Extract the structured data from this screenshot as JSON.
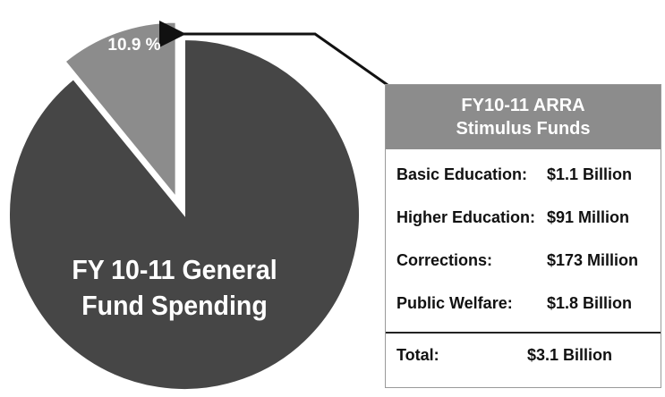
{
  "chart_data": {
    "type": "pie",
    "title": "",
    "slices": [
      {
        "label": "FY 10-11 General Fund Spending",
        "value": 89.1,
        "color": "#464646"
      },
      {
        "label": "10.9 %",
        "value": 10.9,
        "color": "#8c8c8c",
        "exploded": true
      }
    ]
  },
  "panel": {
    "title_line1": "FY10-11 ARRA",
    "title_line2": "Stimulus Funds",
    "rows": [
      {
        "label": "Basic Education:",
        "value": "$1.1  Billion"
      },
      {
        "label": "Higher Education:",
        "value": "$91    Million"
      },
      {
        "label": "Corrections:",
        "value": "$173 Million"
      },
      {
        "label": "Public Welfare:",
        "value": "$1.8  Billion"
      }
    ],
    "total": {
      "label": "Total:",
      "value": "$3.1 Billion"
    }
  },
  "pie_label_line1": "FY 10-11 General",
  "pie_label_line2": "Fund Spending",
  "slice_label": "10.9 %"
}
